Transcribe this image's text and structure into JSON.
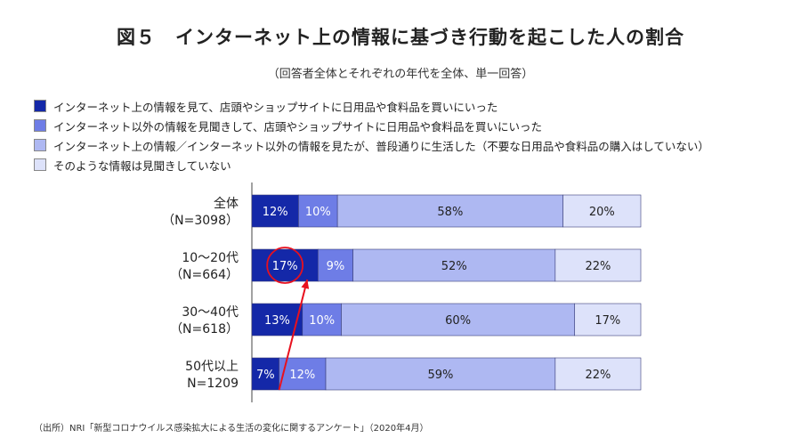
{
  "title": "図５　インターネット上の情報に基づき行動を起こした人の割合",
  "subtitle": "（回答者全体とそれぞれの年代を全体、単一回答）",
  "source": "（出所）NRI「新型コロナウイルス感染拡大による生活の変化に関するアンケート」（2020年4月）",
  "legend": [
    {
      "label": "インターネット上の情報を見て、店頭やショップサイトに日用品や食料品を買いにいった",
      "color": "#1428a8"
    },
    {
      "label": "インターネット以外の情報を見聞きして、店頭やショップサイトに日用品や食料品を買いにいった",
      "color": "#6e7de6"
    },
    {
      "label": "インターネット上の情報／インターネット以外の情報を見たが、普段通りに生活した（不要な日用品や食料品の購入はしていない）",
      "color": "#aeb8f2"
    },
    {
      "label": "そのような情報は見聞きしていない",
      "color": "#dde2fa"
    }
  ],
  "chart_data": {
    "type": "bar",
    "orientation": "horizontal",
    "stacked": true,
    "unit": "%",
    "xlim": [
      0,
      100
    ],
    "categories": [
      {
        "line1": "全体",
        "line2": "（N=3098）"
      },
      {
        "line1": "10～20代",
        "line2": "（N=664）"
      },
      {
        "line1": "30～40代",
        "line2": "（N=618）"
      },
      {
        "line1": "50代以上",
        "line2": "N=1209"
      }
    ],
    "series": [
      {
        "values": [
          12,
          17,
          13,
          7
        ],
        "color": "#1428a8",
        "label_color": "#ffffff"
      },
      {
        "values": [
          10,
          9,
          10,
          12
        ],
        "color": "#6e7de6",
        "label_color": "#ffffff"
      },
      {
        "values": [
          58,
          52,
          60,
          59
        ],
        "color": "#aeb8f2",
        "label_color": "#222222"
      },
      {
        "values": [
          20,
          22,
          17,
          22
        ],
        "color": "#dde2fa",
        "label_color": "#222222"
      }
    ],
    "annotation": {
      "type": "circle-and-arrow",
      "highlight": {
        "category_index": 1,
        "series_index": 0
      },
      "from": {
        "category_index": 3,
        "series_index": 0
      },
      "color": "#e8101e"
    }
  }
}
